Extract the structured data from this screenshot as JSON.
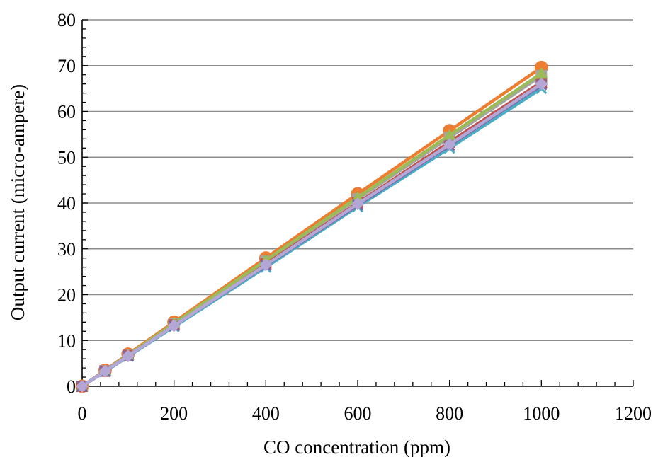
{
  "chart_data": {
    "type": "line",
    "title": "",
    "xlabel": "CO concentration (ppm)",
    "ylabel": "Output current (micro-ampere)",
    "xlim": [
      0,
      1200
    ],
    "ylim": [
      0,
      80
    ],
    "xticks": [
      0,
      200,
      400,
      600,
      800,
      1000,
      1200
    ],
    "yticks": [
      0,
      10,
      20,
      30,
      40,
      50,
      60,
      70,
      80
    ],
    "grid": "horizontal",
    "legend": "none",
    "x": [
      0,
      50,
      100,
      200,
      400,
      600,
      800,
      1000
    ],
    "series": [
      {
        "color": "#ED7D31",
        "marker": "circle",
        "values": [
          0,
          3.5,
          7.0,
          14.0,
          28.0,
          42.0,
          55.8,
          69.6
        ]
      },
      {
        "color": "#A5A5A5",
        "marker": "square",
        "values": [
          0,
          3.4,
          6.8,
          13.6,
          27.3,
          40.9,
          54.3,
          67.8
        ]
      },
      {
        "color": "#C0504D",
        "marker": "square",
        "values": [
          0,
          3.3,
          6.7,
          13.4,
          26.7,
          40.0,
          53.3,
          66.4
        ]
      },
      {
        "color": "#9BBB59",
        "marker": "triangle",
        "values": [
          0,
          3.4,
          6.8,
          13.7,
          27.5,
          41.2,
          54.8,
          68.3
        ]
      },
      {
        "color": "#4BACC6",
        "marker": "x",
        "values": [
          0,
          3.2,
          6.5,
          13.0,
          26.0,
          39.2,
          52.0,
          65.0
        ]
      },
      {
        "color": "#8064A2",
        "marker": "x",
        "values": [
          0,
          3.3,
          6.6,
          13.2,
          26.4,
          39.6,
          52.6,
          65.8
        ]
      },
      {
        "color": "#B4A7D6",
        "marker": "diamond",
        "values": [
          0,
          3.3,
          6.6,
          13.2,
          26.5,
          39.8,
          52.8,
          66.0
        ]
      }
    ]
  }
}
